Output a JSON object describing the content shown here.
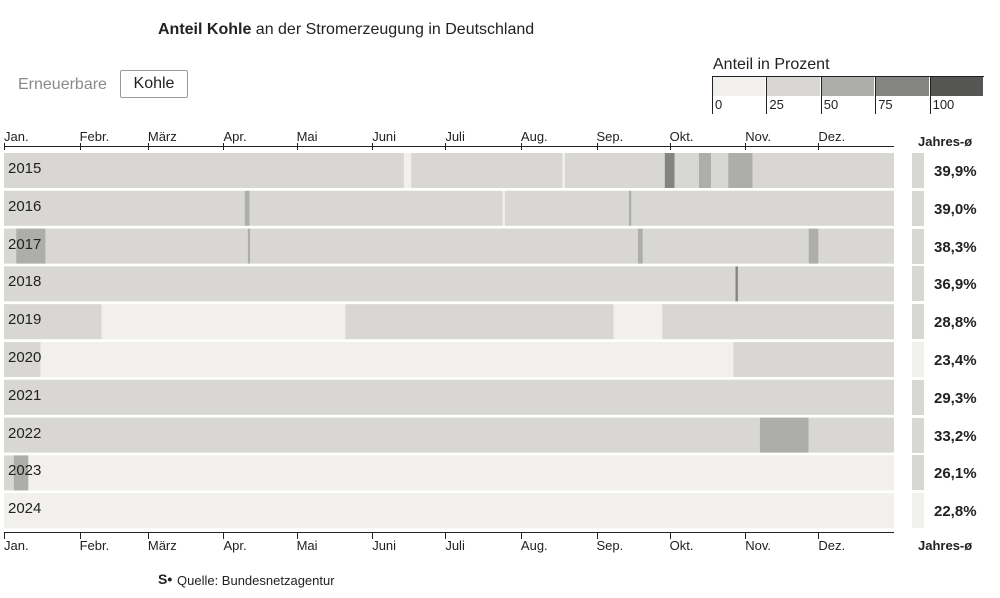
{
  "title": {
    "bold": "Anteil Kohle",
    "rest": " an der Stromerzeugung in Deutschland"
  },
  "toggle": {
    "option_a": "Erneuerbare",
    "option_b": "Kohle",
    "selected": "Kohle"
  },
  "legend": {
    "title": "Anteil in Prozent",
    "labels": [
      "0",
      "25",
      "50",
      "75",
      "100"
    ],
    "colors": [
      "#f1f0ec",
      "#d8d7d3",
      "#adadaa",
      "#848482",
      "#555554"
    ]
  },
  "colors": {
    "bg_empty": "#f1f0ec"
  },
  "chart_data": {
    "type": "heatmap",
    "title": "Anteil Kohle an der Stromerzeugung in Deutschland",
    "x_axis_labels": [
      "Jan.",
      "Febr.",
      "März",
      "Apr.",
      "Mai",
      "Juni",
      "Juli",
      "Aug.",
      "Sep.",
      "Okt.",
      "Nov.",
      "Dez."
    ],
    "y_axis_labels": [
      "2015",
      "2016",
      "2017",
      "2018",
      "2019",
      "2020",
      "2021",
      "2022",
      "2023",
      "2024"
    ],
    "summary_label": "Jahres-ø",
    "legend_title": "Anteil in Prozent",
    "color_scale_bins": [
      0,
      25,
      50,
      75,
      100
    ],
    "unit": "% Anteil Kohle (Tageswerte, Stufen 0–25 / 25–50 / 50–75 / 75–100)",
    "years": [
      {
        "year": "2015",
        "avg_label": "39,9%",
        "avg": 39.9,
        "segments": [
          {
            "s": 1,
            "e": 164,
            "bin": 1
          },
          {
            "s": 168,
            "e": 229,
            "bin": 1
          },
          {
            "s": 231,
            "e": 271,
            "bin": 1
          },
          {
            "s": 272,
            "e": 275,
            "bin": 3
          },
          {
            "s": 276,
            "e": 285,
            "bin": 1
          },
          {
            "s": 286,
            "e": 290,
            "bin": 2
          },
          {
            "s": 291,
            "e": 297,
            "bin": 1
          },
          {
            "s": 298,
            "e": 307,
            "bin": 2
          },
          {
            "s": 308,
            "e": 365,
            "bin": 1
          }
        ]
      },
      {
        "year": "2016",
        "avg_label": "39,0%",
        "avg": 39.0,
        "segments": [
          {
            "s": 1,
            "e": 99,
            "bin": 1
          },
          {
            "s": 100,
            "e": 101,
            "bin": 2
          },
          {
            "s": 102,
            "e": 205,
            "bin": 1
          },
          {
            "s": 207,
            "e": 257,
            "bin": 1
          },
          {
            "s": 258,
            "e": 258,
            "bin": 2
          },
          {
            "s": 259,
            "e": 366,
            "bin": 1
          }
        ]
      },
      {
        "year": "2017",
        "avg_label": "38,3%",
        "avg": 38.3,
        "segments": [
          {
            "s": 1,
            "e": 5,
            "bin": 1
          },
          {
            "s": 6,
            "e": 17,
            "bin": 2
          },
          {
            "s": 18,
            "e": 100,
            "bin": 1
          },
          {
            "s": 101,
            "e": 101,
            "bin": 2
          },
          {
            "s": 102,
            "e": 260,
            "bin": 1
          },
          {
            "s": 261,
            "e": 262,
            "bin": 2
          },
          {
            "s": 263,
            "e": 330,
            "bin": 1
          },
          {
            "s": 331,
            "e": 334,
            "bin": 2
          },
          {
            "s": 335,
            "e": 365,
            "bin": 1
          }
        ]
      },
      {
        "year": "2018",
        "avg_label": "36,9%",
        "avg": 36.9,
        "segments": [
          {
            "s": 1,
            "e": 300,
            "bin": 1
          },
          {
            "s": 301,
            "e": 301,
            "bin": 3
          },
          {
            "s": 302,
            "e": 365,
            "bin": 1
          }
        ]
      },
      {
        "year": "2019",
        "avg_label": "28,8%",
        "avg": 28.8,
        "segments": [
          {
            "s": 1,
            "e": 40,
            "bin": 1
          },
          {
            "s": 41,
            "e": 140,
            "bin": 0
          },
          {
            "s": 141,
            "e": 250,
            "bin": 1
          },
          {
            "s": 251,
            "e": 270,
            "bin": 0
          },
          {
            "s": 271,
            "e": 365,
            "bin": 1
          }
        ]
      },
      {
        "year": "2020",
        "avg_label": "23,4%",
        "avg": 23.4,
        "segments": [
          {
            "s": 1,
            "e": 15,
            "bin": 1
          },
          {
            "s": 16,
            "e": 300,
            "bin": 0
          },
          {
            "s": 301,
            "e": 366,
            "bin": 1
          }
        ]
      },
      {
        "year": "2021",
        "avg_label": "29,3%",
        "avg": 29.3,
        "segments": [
          {
            "s": 1,
            "e": 365,
            "bin": 1
          }
        ]
      },
      {
        "year": "2022",
        "avg_label": "33,2%",
        "avg": 33.2,
        "segments": [
          {
            "s": 1,
            "e": 310,
            "bin": 1
          },
          {
            "s": 311,
            "e": 330,
            "bin": 2
          },
          {
            "s": 331,
            "e": 365,
            "bin": 1
          }
        ]
      },
      {
        "year": "2023",
        "avg_label": "26,1%",
        "avg": 26.1,
        "segments": [
          {
            "s": 1,
            "e": 4,
            "bin": 1
          },
          {
            "s": 5,
            "e": 10,
            "bin": 2
          },
          {
            "s": 11,
            "e": 365,
            "bin": 0
          }
        ]
      },
      {
        "year": "2024",
        "avg_label": "22,8%",
        "avg": 22.8,
        "segments": [
          {
            "s": 1,
            "e": 366,
            "bin": 0
          }
        ]
      }
    ]
  },
  "source": {
    "logo": "S•",
    "text": "Quelle: Bundesnetzagentur"
  }
}
